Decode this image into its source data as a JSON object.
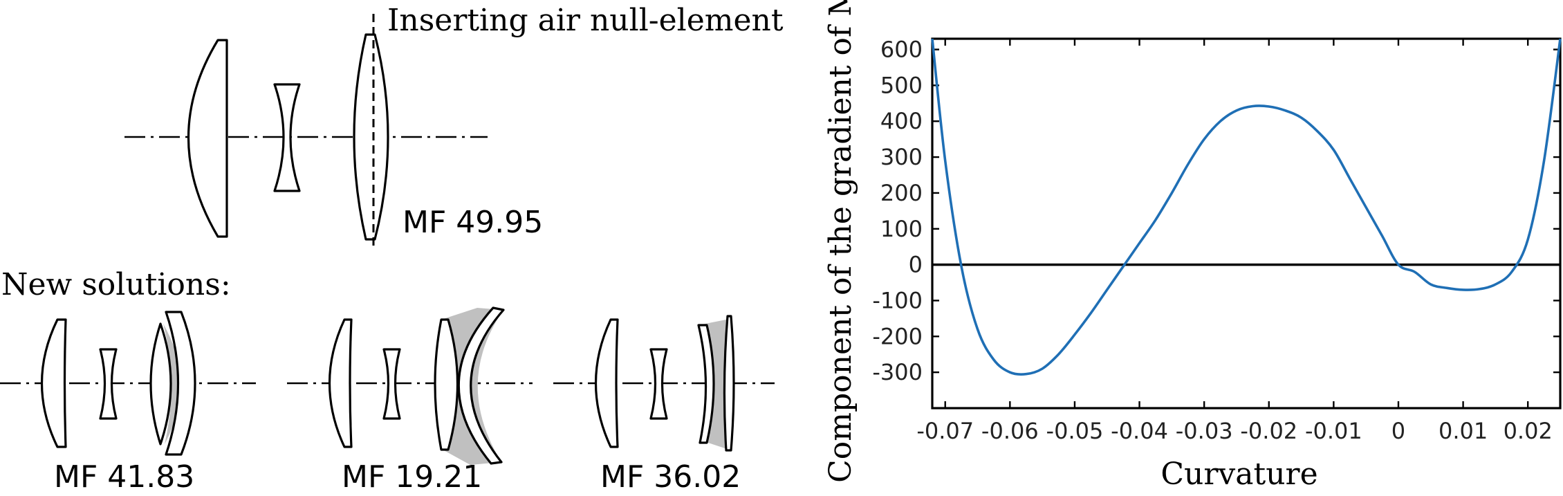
{
  "left_panel": {
    "annotation_top": "Inserting air null-element",
    "mf_initial": "MF 49.95",
    "new_solutions_label": "New solutions:",
    "solution_labels": [
      "MF 41.83",
      "MF 19.21",
      "MF 36.02"
    ]
  },
  "chart_data": {
    "type": "line",
    "title": "",
    "xlabel": "Curvature",
    "ylabel": "Component of the gradient of MF",
    "xlim": [
      -0.072,
      0.025
    ],
    "ylim": [
      -400,
      630
    ],
    "x_ticks": [
      -0.07,
      -0.06,
      -0.05,
      -0.04,
      -0.03,
      -0.02,
      -0.01,
      0,
      0.01,
      0.02
    ],
    "x_tick_labels": [
      "-0.07",
      "-0.06",
      "-0.05",
      "-0.04",
      "-0.03",
      "-0.02",
      "-0.01",
      "0",
      "0.01",
      "0.02"
    ],
    "y_ticks": [
      -300,
      -200,
      -100,
      0,
      100,
      200,
      300,
      400,
      500,
      600
    ],
    "y_tick_labels": [
      "-300",
      "-200",
      "-100",
      "0",
      "100",
      "200",
      "300",
      "400",
      "500",
      "600"
    ],
    "grid": false,
    "zero_line": true,
    "series": [
      {
        "color": "#1f6fb5",
        "x": [
          -0.072,
          -0.07,
          -0.0675,
          -0.065,
          -0.0625,
          -0.06,
          -0.0575,
          -0.055,
          -0.0525,
          -0.05,
          -0.0475,
          -0.045,
          -0.0425,
          -0.04,
          -0.0375,
          -0.035,
          -0.0325,
          -0.03,
          -0.0275,
          -0.025,
          -0.0225,
          -0.02,
          -0.0175,
          -0.015,
          -0.0125,
          -0.01,
          -0.0075,
          -0.005,
          -0.0025,
          0,
          0.0025,
          0.005,
          0.0075,
          0.01,
          0.0125,
          0.015,
          0.0175,
          0.02,
          0.0225,
          0.025
        ],
        "y": [
          630,
          290,
          -5,
          -180,
          -265,
          -300,
          -305,
          -290,
          -250,
          -195,
          -135,
          -70,
          -5,
          60,
          125,
          200,
          280,
          350,
          400,
          430,
          442,
          441,
          430,
          410,
          372,
          320,
          240,
          160,
          80,
          0,
          -20,
          -55,
          -65,
          -70,
          -68,
          -55,
          -20,
          70,
          290,
          630
        ]
      }
    ]
  }
}
